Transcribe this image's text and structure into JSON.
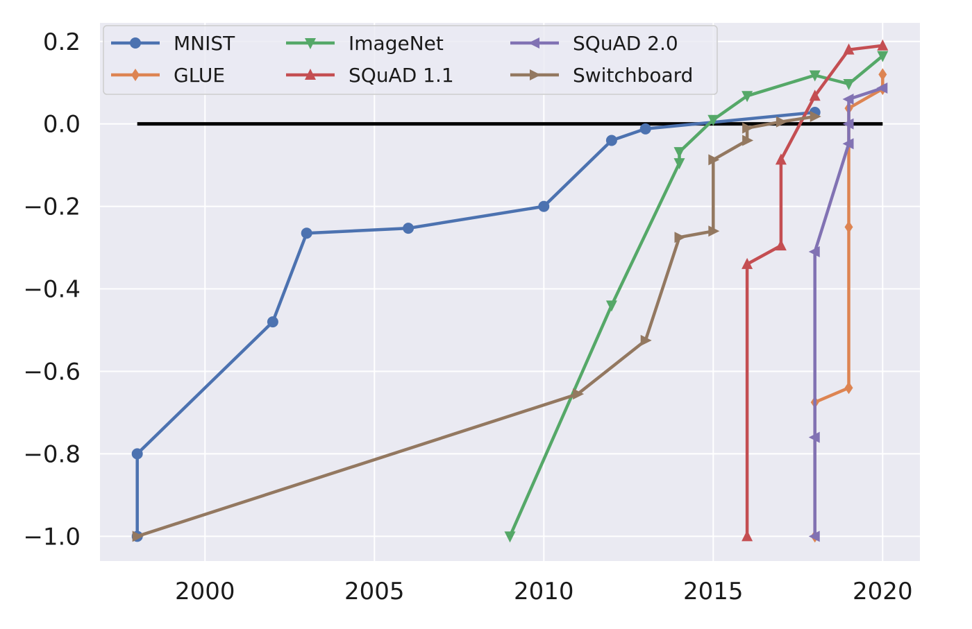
{
  "chart_data": {
    "type": "line",
    "title": "",
    "xlabel": "",
    "ylabel": "",
    "xlim": [
      1996.9,
      2021.1
    ],
    "ylim": [
      -1.06,
      0.245
    ],
    "xticks": [
      2000,
      2005,
      2010,
      2015,
      2020
    ],
    "yticks": [
      0.2,
      0.0,
      -0.2,
      -0.4,
      -0.6,
      -0.8,
      -1.0
    ],
    "grid": true,
    "legend_position": "top-left",
    "legend_columns": 3,
    "reference_line": {
      "y": 0.0,
      "x_from": 1998,
      "x_to": 2020,
      "color": "#000000"
    },
    "series": [
      {
        "name": "MNIST",
        "color": "#4c72b0",
        "marker": "circle",
        "x": [
          1998,
          1998,
          2002,
          2003,
          2006,
          2010,
          2012,
          2013,
          2018
        ],
        "y": [
          -1.0,
          -0.8,
          -0.48,
          -0.265,
          -0.253,
          -0.2,
          -0.04,
          -0.012,
          0.028
        ]
      },
      {
        "name": "GLUE",
        "color": "#dd8452",
        "marker": "diamond",
        "x": [
          2018,
          2018,
          2019,
          2019,
          2019,
          2020,
          2020
        ],
        "y": [
          -1.0,
          -0.675,
          -0.64,
          -0.25,
          0.038,
          0.085,
          0.12
        ]
      },
      {
        "name": "ImageNet",
        "color": "#55a868",
        "marker": "triangle-down",
        "x": [
          2009,
          2012,
          2014,
          2014,
          2015,
          2016,
          2018,
          2019,
          2020
        ],
        "y": [
          -1.0,
          -0.44,
          -0.095,
          -0.068,
          0.01,
          0.068,
          0.118,
          0.097,
          0.165
        ]
      },
      {
        "name": "SQuAD 1.1",
        "color": "#c44e52",
        "marker": "triangle-up",
        "x": [
          2016,
          2016,
          2017,
          2017,
          2018,
          2019,
          2020
        ],
        "y": [
          -1.0,
          -0.34,
          -0.295,
          -0.087,
          0.068,
          0.18,
          0.19
        ]
      },
      {
        "name": "SQuAD 2.0",
        "color": "#8172b3",
        "marker": "triangle-left",
        "x": [
          2018,
          2018,
          2018,
          2019,
          2019,
          2019,
          2020
        ],
        "y": [
          -1.0,
          -0.76,
          -0.31,
          -0.048,
          0.0,
          0.06,
          0.087
        ]
      },
      {
        "name": "Switchboard",
        "color": "#937860",
        "marker": "triangle-right",
        "x": [
          1998,
          2011,
          2013,
          2014,
          2015,
          2015,
          2016,
          2016,
          2017,
          2018
        ],
        "y": [
          -1.0,
          -0.655,
          -0.525,
          -0.275,
          -0.26,
          -0.087,
          -0.04,
          -0.01,
          0.005,
          0.018
        ]
      }
    ]
  }
}
